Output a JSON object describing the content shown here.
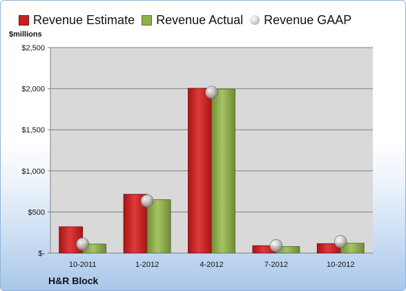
{
  "legend": {
    "estimate": "Revenue Estimate",
    "actual": "Revenue Actual",
    "gaap": "Revenue GAAP"
  },
  "unit_label": "$millions",
  "company": "H&R Block",
  "colors": {
    "estimate": "#cc1f1f",
    "actual": "#8fb04a",
    "gaap": "#b0b0b0",
    "plot_bg": "#d9d9d9"
  },
  "chart_data": {
    "type": "bar",
    "categories": [
      "10-2011",
      "1-2012",
      "4-2012",
      "7-2012",
      "10-2012"
    ],
    "series": [
      {
        "name": "Revenue Estimate",
        "values": [
          320,
          715,
          2005,
          90,
          115
        ]
      },
      {
        "name": "Revenue Actual",
        "values": [
          110,
          650,
          1995,
          80,
          120
        ]
      },
      {
        "name": "Revenue GAAP",
        "values": [
          110,
          635,
          1955,
          90,
          140
        ]
      }
    ],
    "ylabel": "$millions",
    "ylim": [
      0,
      2500
    ],
    "yticks": [
      0,
      500,
      1000,
      1500,
      2000,
      2500
    ],
    "ytick_labels": [
      "$-",
      "$500",
      "$1,000",
      "$1,500",
      "$2,000",
      "$2,500"
    ],
    "grid": true,
    "legend_position": "top"
  }
}
